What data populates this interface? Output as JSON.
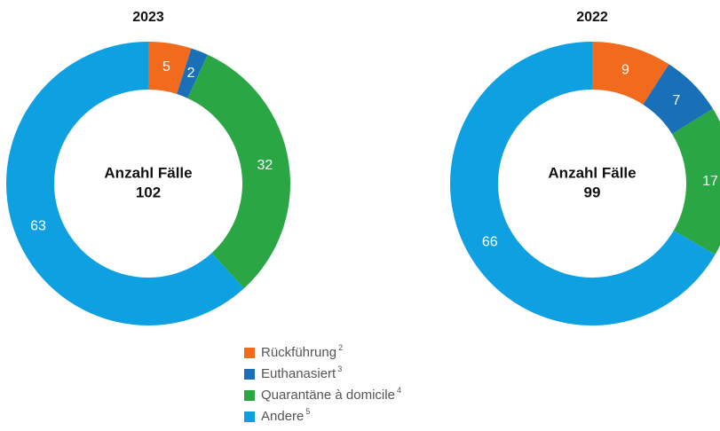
{
  "chart_data": [
    {
      "type": "pie",
      "title": "2023",
      "center_label": "Anzahl Fälle",
      "total": 102,
      "values": [
        5,
        2,
        32,
        63
      ]
    },
    {
      "type": "pie",
      "title": "2022",
      "center_label": "Anzahl Fälle",
      "total": 99,
      "values": [
        9,
        7,
        17,
        66
      ]
    }
  ],
  "legend": {
    "names": [
      "Rückführung",
      "Euthanasiert",
      "Quarantäne à domicile",
      "Andere"
    ],
    "notes": [
      2,
      3,
      4,
      5
    ],
    "colors": [
      "#f26b1d",
      "#1a70b8",
      "#2aa744",
      "#0fa0e2"
    ]
  }
}
